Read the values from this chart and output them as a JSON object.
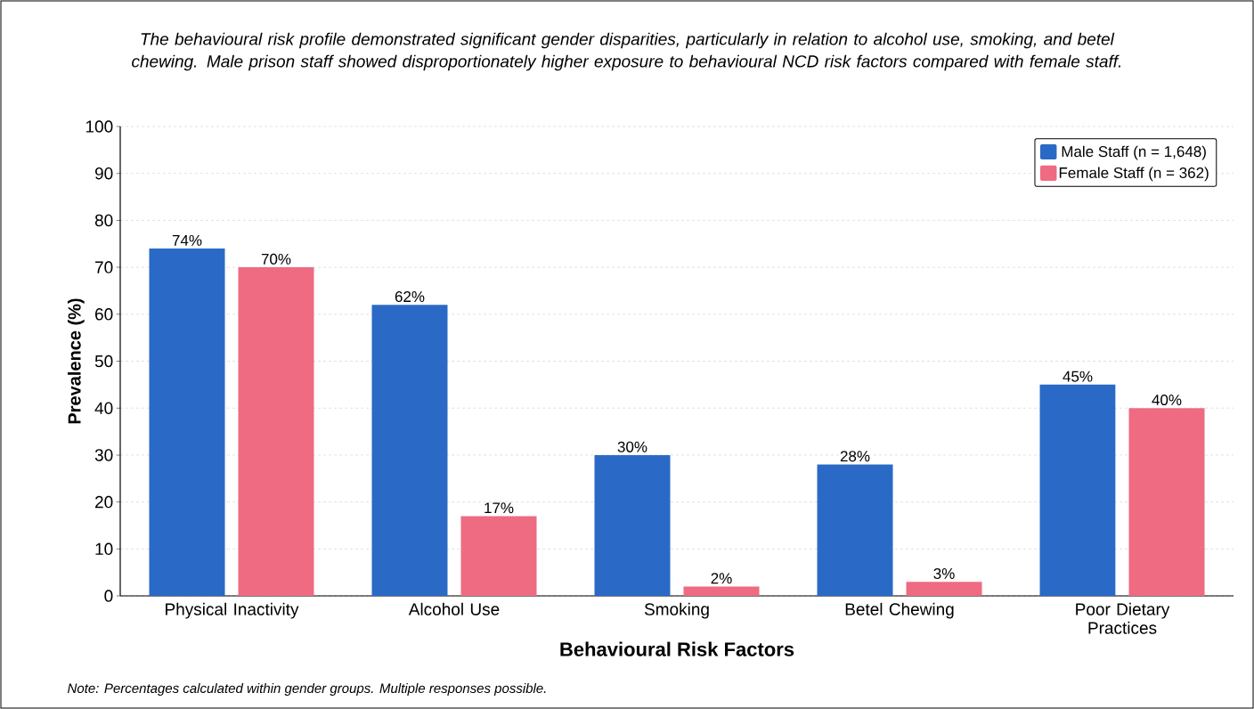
{
  "chart_data": {
    "type": "bar",
    "subtitle": "The behavioural risk profile demonstrated significant gender disparities, particularly in relation to alcohol use, smoking, and betel chewing. Male prison staff showed disproportionately higher exposure to behavioural NCD risk factors compared with female staff.",
    "xlabel": "Behavioural Risk Factors",
    "ylabel": "Prevalence (%)",
    "categories": [
      "Physical Inactivity",
      "Alcohol Use",
      "Smoking",
      "Betel Chewing",
      "Poor Dietary Practices"
    ],
    "series": [
      {
        "name": "Male Staff (n = 1,648)",
        "color": "#2a6ac6",
        "values": [
          74,
          62,
          30,
          28,
          45
        ],
        "value_labels": [
          "74%",
          "62%",
          "30%",
          "28%",
          "45%"
        ]
      },
      {
        "name": "Female Staff (n = 362)",
        "color": "#ee6b82",
        "values": [
          70,
          17,
          2,
          3,
          40
        ],
        "value_labels": [
          "70%",
          "17%",
          "2%",
          "3%",
          "40%"
        ]
      }
    ],
    "ylim": [
      0,
      100
    ],
    "yticks": [
      0,
      10,
      20,
      30,
      40,
      50,
      60,
      70,
      80,
      90,
      100
    ],
    "grid": "y",
    "legend": "top right",
    "annotations": [
      "Note: Percentages calculated within gender groups. Multiple responses possible."
    ]
  }
}
